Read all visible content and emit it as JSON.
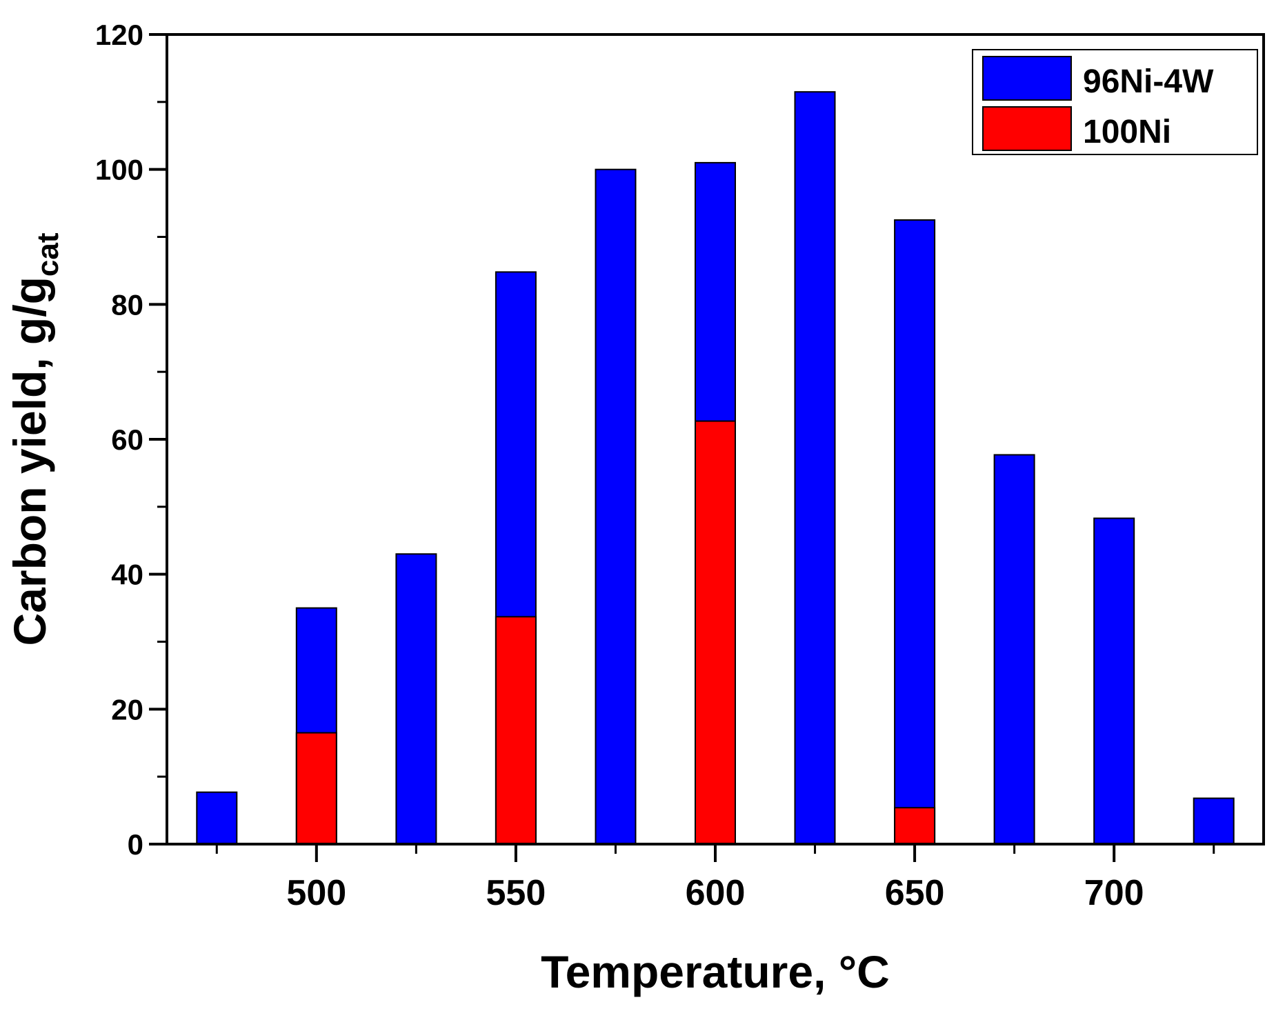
{
  "chart_data": {
    "type": "bar",
    "title": "",
    "xlabel": "Temperature, °C",
    "ylabel_main": "Carbon yield, g/g",
    "ylabel_sub": "cat",
    "xlim": [
      462.5,
      737.5
    ],
    "ylim": [
      0,
      120
    ],
    "xticks": [
      500,
      550,
      600,
      650,
      700
    ],
    "yticks": [
      0,
      20,
      40,
      60,
      80,
      100,
      120
    ],
    "legend_position": "top-right",
    "series": [
      {
        "name": "96Ni-4W",
        "color": "#0000ff",
        "x": [
          475,
          500,
          525,
          550,
          575,
          600,
          625,
          650,
          675,
          700,
          725
        ],
        "values": [
          7.7,
          35.0,
          43.0,
          84.8,
          100.0,
          101.0,
          111.5,
          92.5,
          57.7,
          48.3,
          6.8
        ]
      },
      {
        "name": "100Ni",
        "color": "#ff0000",
        "x": [
          500,
          550,
          600,
          650
        ],
        "values": [
          16.5,
          33.7,
          62.7,
          5.4
        ]
      }
    ]
  }
}
